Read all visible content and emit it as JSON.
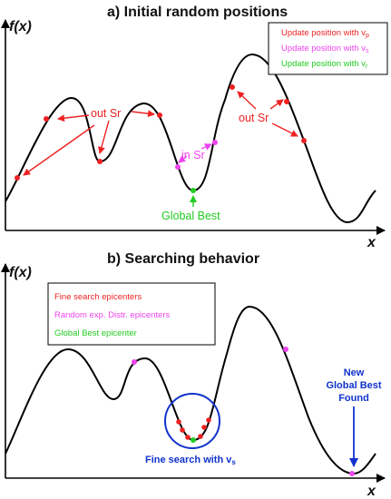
{
  "panel_a": {
    "title": "a) Initial random positions",
    "y_axis_label": "f(x)",
    "x_axis_label": "x",
    "legend": [
      {
        "label": "Update position with v",
        "sub": "p",
        "color": "#ee2222"
      },
      {
        "label": "Update position with v",
        "sub": "s",
        "color": "#ee44ee"
      },
      {
        "label": "Update position with v",
        "sub": "r",
        "color": "#22cc22"
      }
    ],
    "annotations": {
      "out_sr_left": "out Sr",
      "out_sr_right": "out Sr",
      "in_sr": "in Sr",
      "global_best": "Global Best"
    }
  },
  "panel_b": {
    "title": "b) Searching behavior",
    "y_axis_label": "f(x)",
    "x_axis_label": "x",
    "legend": [
      {
        "label": "Fine search epicenters",
        "color": "#ee2222"
      },
      {
        "label": "Random exp. Distr. epicenters",
        "color": "#ee44ee"
      },
      {
        "label": "Global Best epicenter",
        "color": "#22cc22"
      }
    ],
    "annotations": {
      "fine_search": "Fine search with v",
      "fine_search_sub": "s",
      "new_best_line1": "New",
      "new_best_line2": "Global Best",
      "new_best_line3": "Found"
    }
  },
  "colors": {
    "red": "#ee2222",
    "magenta": "#ee44ee",
    "green": "#22cc22",
    "blue": "#1133cc",
    "axis": "#000000"
  }
}
